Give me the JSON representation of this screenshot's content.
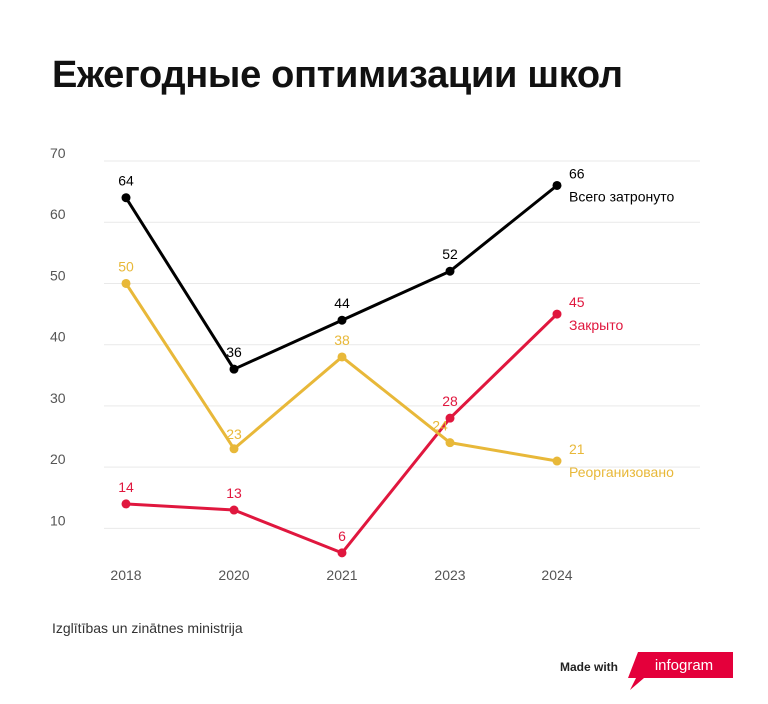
{
  "title": "Ежегодные оптимизации школ",
  "source": "Izglītības un zinātnes ministrija",
  "footer": {
    "made_with": "Made with",
    "brand": "infogram",
    "brand_color": "#e4003b"
  },
  "chart_data": {
    "type": "line",
    "categories": [
      "2018",
      "2020",
      "2021",
      "2023",
      "2024"
    ],
    "ylim": [
      5,
      70
    ],
    "yticks": [
      10,
      20,
      30,
      40,
      50,
      60,
      70
    ],
    "grid": true,
    "xlabel": "",
    "ylabel": "",
    "series": [
      {
        "name": "Всего затронуто",
        "color": "#000000",
        "values": [
          64,
          36,
          44,
          52,
          66
        ]
      },
      {
        "name": "Закрыто",
        "color": "#e0173e",
        "values": [
          14,
          13,
          6,
          28,
          45
        ]
      },
      {
        "name": "Реорганизовано",
        "color": "#e8b839",
        "values": [
          50,
          23,
          38,
          24,
          21
        ]
      }
    ]
  }
}
